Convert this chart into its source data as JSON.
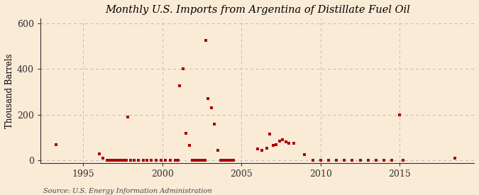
{
  "title": "Monthly U.S. Imports from Argentina of Distillate Fuel Oil",
  "ylabel": "Thousand Barrels",
  "source": "Source: U.S. Energy Information Administration",
  "background_color": "#faebd7",
  "point_color": "#aa0000",
  "grid_color": "#bbbbbb",
  "ylim": [
    -10,
    620
  ],
  "yticks": [
    0,
    200,
    400,
    600
  ],
  "xlim": [
    1992.3,
    2019.7
  ],
  "xticks": [
    1995,
    2000,
    2005,
    2010,
    2015
  ],
  "data_points": [
    [
      1993.3,
      70
    ],
    [
      1996.0,
      30
    ],
    [
      1996.25,
      10
    ],
    [
      1996.5,
      0
    ],
    [
      1996.6,
      0
    ],
    [
      1996.7,
      0
    ],
    [
      1996.8,
      0
    ],
    [
      1996.9,
      0
    ],
    [
      1997.0,
      0
    ],
    [
      1997.1,
      0
    ],
    [
      1997.2,
      0
    ],
    [
      1997.3,
      0
    ],
    [
      1997.4,
      0
    ],
    [
      1997.5,
      0
    ],
    [
      1997.6,
      0
    ],
    [
      1997.7,
      0
    ],
    [
      1997.8,
      190
    ],
    [
      1998.0,
      0
    ],
    [
      1998.2,
      0
    ],
    [
      1998.5,
      0
    ],
    [
      1998.8,
      0
    ],
    [
      1999.0,
      0
    ],
    [
      1999.3,
      0
    ],
    [
      1999.6,
      0
    ],
    [
      1999.9,
      0
    ],
    [
      2000.2,
      0
    ],
    [
      2000.5,
      0
    ],
    [
      2000.8,
      0
    ],
    [
      2001.0,
      0
    ],
    [
      2001.1,
      325
    ],
    [
      2001.3,
      400
    ],
    [
      2001.5,
      120
    ],
    [
      2001.7,
      65
    ],
    [
      2001.9,
      0
    ],
    [
      2002.0,
      0
    ],
    [
      2002.1,
      0
    ],
    [
      2002.2,
      0
    ],
    [
      2002.3,
      0
    ],
    [
      2002.4,
      0
    ],
    [
      2002.5,
      0
    ],
    [
      2002.6,
      0
    ],
    [
      2002.7,
      0
    ],
    [
      2002.75,
      525
    ],
    [
      2002.9,
      270
    ],
    [
      2003.1,
      230
    ],
    [
      2003.3,
      160
    ],
    [
      2003.5,
      45
    ],
    [
      2003.7,
      0
    ],
    [
      2003.8,
      0
    ],
    [
      2003.9,
      0
    ],
    [
      2004.0,
      0
    ],
    [
      2004.1,
      0
    ],
    [
      2004.2,
      0
    ],
    [
      2004.3,
      0
    ],
    [
      2004.4,
      0
    ],
    [
      2004.5,
      0
    ],
    [
      2006.0,
      50
    ],
    [
      2006.3,
      45
    ],
    [
      2006.6,
      55
    ],
    [
      2006.8,
      115
    ],
    [
      2007.0,
      65
    ],
    [
      2007.2,
      70
    ],
    [
      2007.4,
      85
    ],
    [
      2007.6,
      90
    ],
    [
      2007.8,
      80
    ],
    [
      2008.0,
      75
    ],
    [
      2008.3,
      75
    ],
    [
      2009.0,
      25
    ],
    [
      2009.5,
      0
    ],
    [
      2010.0,
      0
    ],
    [
      2010.5,
      0
    ],
    [
      2011.0,
      0
    ],
    [
      2011.5,
      0
    ],
    [
      2012.0,
      0
    ],
    [
      2012.5,
      0
    ],
    [
      2013.0,
      0
    ],
    [
      2013.5,
      0
    ],
    [
      2014.0,
      0
    ],
    [
      2014.5,
      0
    ],
    [
      2015.0,
      200
    ],
    [
      2015.2,
      0
    ],
    [
      2018.5,
      10
    ]
  ]
}
